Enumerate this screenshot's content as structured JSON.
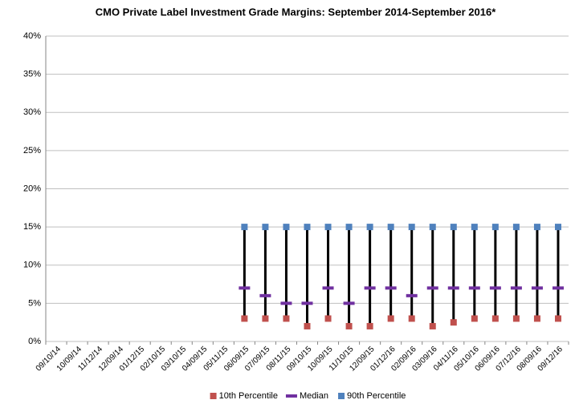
{
  "chart_data": {
    "type": "hilo",
    "title": "CMO Private Label Investment Grade Margins: September 2014-September 2016*",
    "categories": [
      "09/10/14",
      "10/09/14",
      "11/12/14",
      "12/09/14",
      "01/12/15",
      "02/10/15",
      "03/10/15",
      "04/09/15",
      "05/11/15",
      "06/09/15",
      "07/09/15",
      "08/11/15",
      "09/10/15",
      "10/09/15",
      "11/10/15",
      "12/09/15",
      "01/12/16",
      "02/09/16",
      "03/09/16",
      "04/11/16",
      "05/10/16",
      "06/09/16",
      "07/12/16",
      "08/09/16",
      "09/12/16"
    ],
    "series": [
      {
        "name": "10th Percentile",
        "color": "#c0504d",
        "values": [
          null,
          null,
          null,
          null,
          null,
          null,
          null,
          null,
          null,
          3,
          3,
          3,
          2,
          3,
          2,
          2,
          3,
          3,
          2,
          2.5,
          3,
          3,
          3,
          3,
          3
        ]
      },
      {
        "name": "Median",
        "color": "#7030a0",
        "values": [
          null,
          null,
          null,
          null,
          null,
          null,
          null,
          null,
          null,
          7,
          6,
          5,
          5,
          7,
          5,
          7,
          7,
          6,
          7,
          7,
          7,
          7,
          7,
          7,
          7
        ]
      },
      {
        "name": "90th Percentile",
        "color": "#4f81bd",
        "values": [
          null,
          null,
          null,
          null,
          null,
          null,
          null,
          null,
          null,
          15,
          15,
          15,
          15,
          15,
          15,
          15,
          15,
          15,
          15,
          15,
          15,
          15,
          15,
          15,
          15
        ]
      }
    ],
    "ylim": [
      0,
      40
    ],
    "yticks": [
      {
        "value": 0,
        "label": "0%"
      },
      {
        "value": 5,
        "label": "5%"
      },
      {
        "value": 10,
        "label": "10%"
      },
      {
        "value": 15,
        "label": "15%"
      },
      {
        "value": 20,
        "label": "20%"
      },
      {
        "value": 25,
        "label": "25%"
      },
      {
        "value": 30,
        "label": "30%"
      },
      {
        "value": 35,
        "label": "35%"
      },
      {
        "value": 40,
        "label": "40%"
      }
    ],
    "grid": true
  }
}
